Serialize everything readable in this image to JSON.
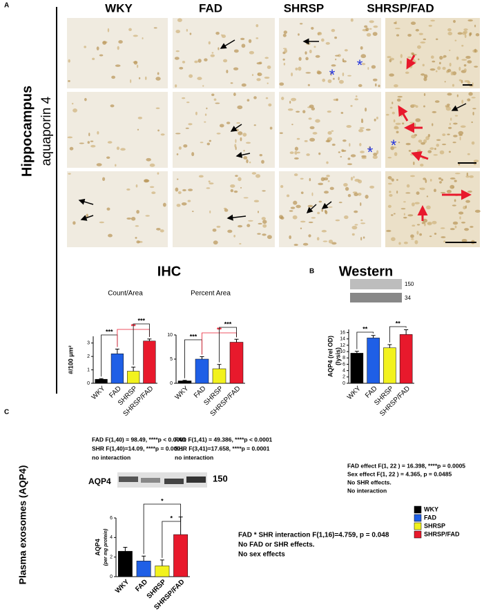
{
  "panel_labels": [
    "A",
    "B",
    "C"
  ],
  "columns": [
    "WKY",
    "FAD",
    "SHRSP",
    "SHRSP/FAD"
  ],
  "region": "Hippocampus",
  "stain": "aquaporin 4",
  "sections": [
    "IHC",
    "Western"
  ],
  "ihc_stats": [
    [
      "FAD F(1,40) = 98.49, ****p < 0.0001",
      "SHR F(1,40)=14.09, ****p =  0.0001",
      "no interaction"
    ],
    [
      "FAD F(1,41) = 49.386, ****p < 0.0001",
      "SHR F(3,41)=17.658, ****p =  0.0001",
      "no interaction"
    ]
  ],
  "western_stats": [
    "FAD effect F(1, 22 ) = 16.398, ****p = 0.0005",
    "Sex effect F(1, 22 ) = 4.365, p = 0.0485",
    "No SHR effects.",
    "No interaction"
  ],
  "western_blot_labels": [
    "150",
    "34"
  ],
  "exosome_title": "Plasma exosomes (AQP4)",
  "exosome_blot_target": "AQP4",
  "exosome_blot_label": "150",
  "exosome_stats": [
    "FAD * SHR interaction  F(1,16)=4.759, p = 0.048",
    "No FAD or SHR effects.",
    "No sex effects"
  ],
  "legend": [
    {
      "name": "WKY",
      "color": "#000000"
    },
    {
      "name": "FAD",
      "color": "#1f5fe6"
    },
    {
      "name": "SHRSP",
      "color": "#f2f21e"
    },
    {
      "name": "SHRSP/FAD",
      "color": "#e8192c"
    }
  ],
  "chart_data": [
    {
      "type": "bar",
      "title": "Count/Area",
      "ylabel": "#/100 μm²",
      "categories": [
        "WKY",
        "FAD",
        "SHRSP",
        "SHRSP/FAD"
      ],
      "values": [
        0.3,
        2.2,
        0.9,
        3.15
      ],
      "errors": [
        0.05,
        0.35,
        0.3,
        0.15
      ],
      "colors": [
        "#000000",
        "#1f5fe6",
        "#f2f21e",
        "#e8192c"
      ],
      "ylim": [
        0,
        3.5
      ],
      "yticks": [
        0,
        1,
        2,
        3
      ],
      "annotations": [
        {
          "text": "***",
          "color": "#000000"
        },
        {
          "text": "**",
          "color": "#e8192c"
        },
        {
          "text": "***",
          "color": "#000000"
        }
      ]
    },
    {
      "type": "bar",
      "title": "Percent Area",
      "categories": [
        "WKY",
        "FAD",
        "SHRSP",
        "SHRSP/FAD"
      ],
      "values": [
        0.5,
        5.0,
        3.0,
        8.5
      ],
      "errors": [
        0.1,
        0.5,
        0.9,
        0.6
      ],
      "colors": [
        "#000000",
        "#1f5fe6",
        "#f2f21e",
        "#e8192c"
      ],
      "ylim": [
        0,
        10
      ],
      "yticks": [
        0,
        5,
        10
      ],
      "annotations": [
        {
          "text": "***",
          "color": "#000000"
        },
        {
          "text": "**",
          "color": "#e8192c"
        },
        {
          "text": "***",
          "color": "#000000"
        }
      ]
    },
    {
      "type": "bar",
      "ylabel": "AQP4 (rel OD)",
      "ylabel_note": "(lysis)",
      "categories": [
        "WKY",
        "FAD",
        "SHRSP",
        "SHRSP/FAD"
      ],
      "values": [
        9.5,
        14.3,
        11.2,
        15.4
      ],
      "errors": [
        0.6,
        0.8,
        1.0,
        1.5
      ],
      "colors": [
        "#000000",
        "#1f5fe6",
        "#f2f21e",
        "#e8192c"
      ],
      "ylim": [
        0,
        17
      ],
      "yticks": [
        0,
        2,
        4,
        6,
        8,
        10,
        12,
        14,
        16
      ],
      "annotations": [
        {
          "text": "**",
          "color": "#000000"
        },
        {
          "text": "**",
          "color": "#000000"
        }
      ]
    },
    {
      "type": "bar",
      "ylabel": "AQP4",
      "ylabel_note": "(per mg protein)",
      "categories": [
        "WKY",
        "FAD",
        "SHRSP",
        "SHRSP/FAD"
      ],
      "values": [
        2.6,
        1.6,
        1.1,
        4.3
      ],
      "errors": [
        0.4,
        0.5,
        0.6,
        1.8
      ],
      "colors": [
        "#000000",
        "#1f5fe6",
        "#f2f21e",
        "#e8192c"
      ],
      "ylim": [
        0,
        6
      ],
      "yticks": [
        0,
        2,
        4,
        6
      ],
      "annotations": [
        {
          "text": "*",
          "color": "#000000"
        },
        {
          "text": "*",
          "color": "#000000"
        }
      ]
    }
  ]
}
